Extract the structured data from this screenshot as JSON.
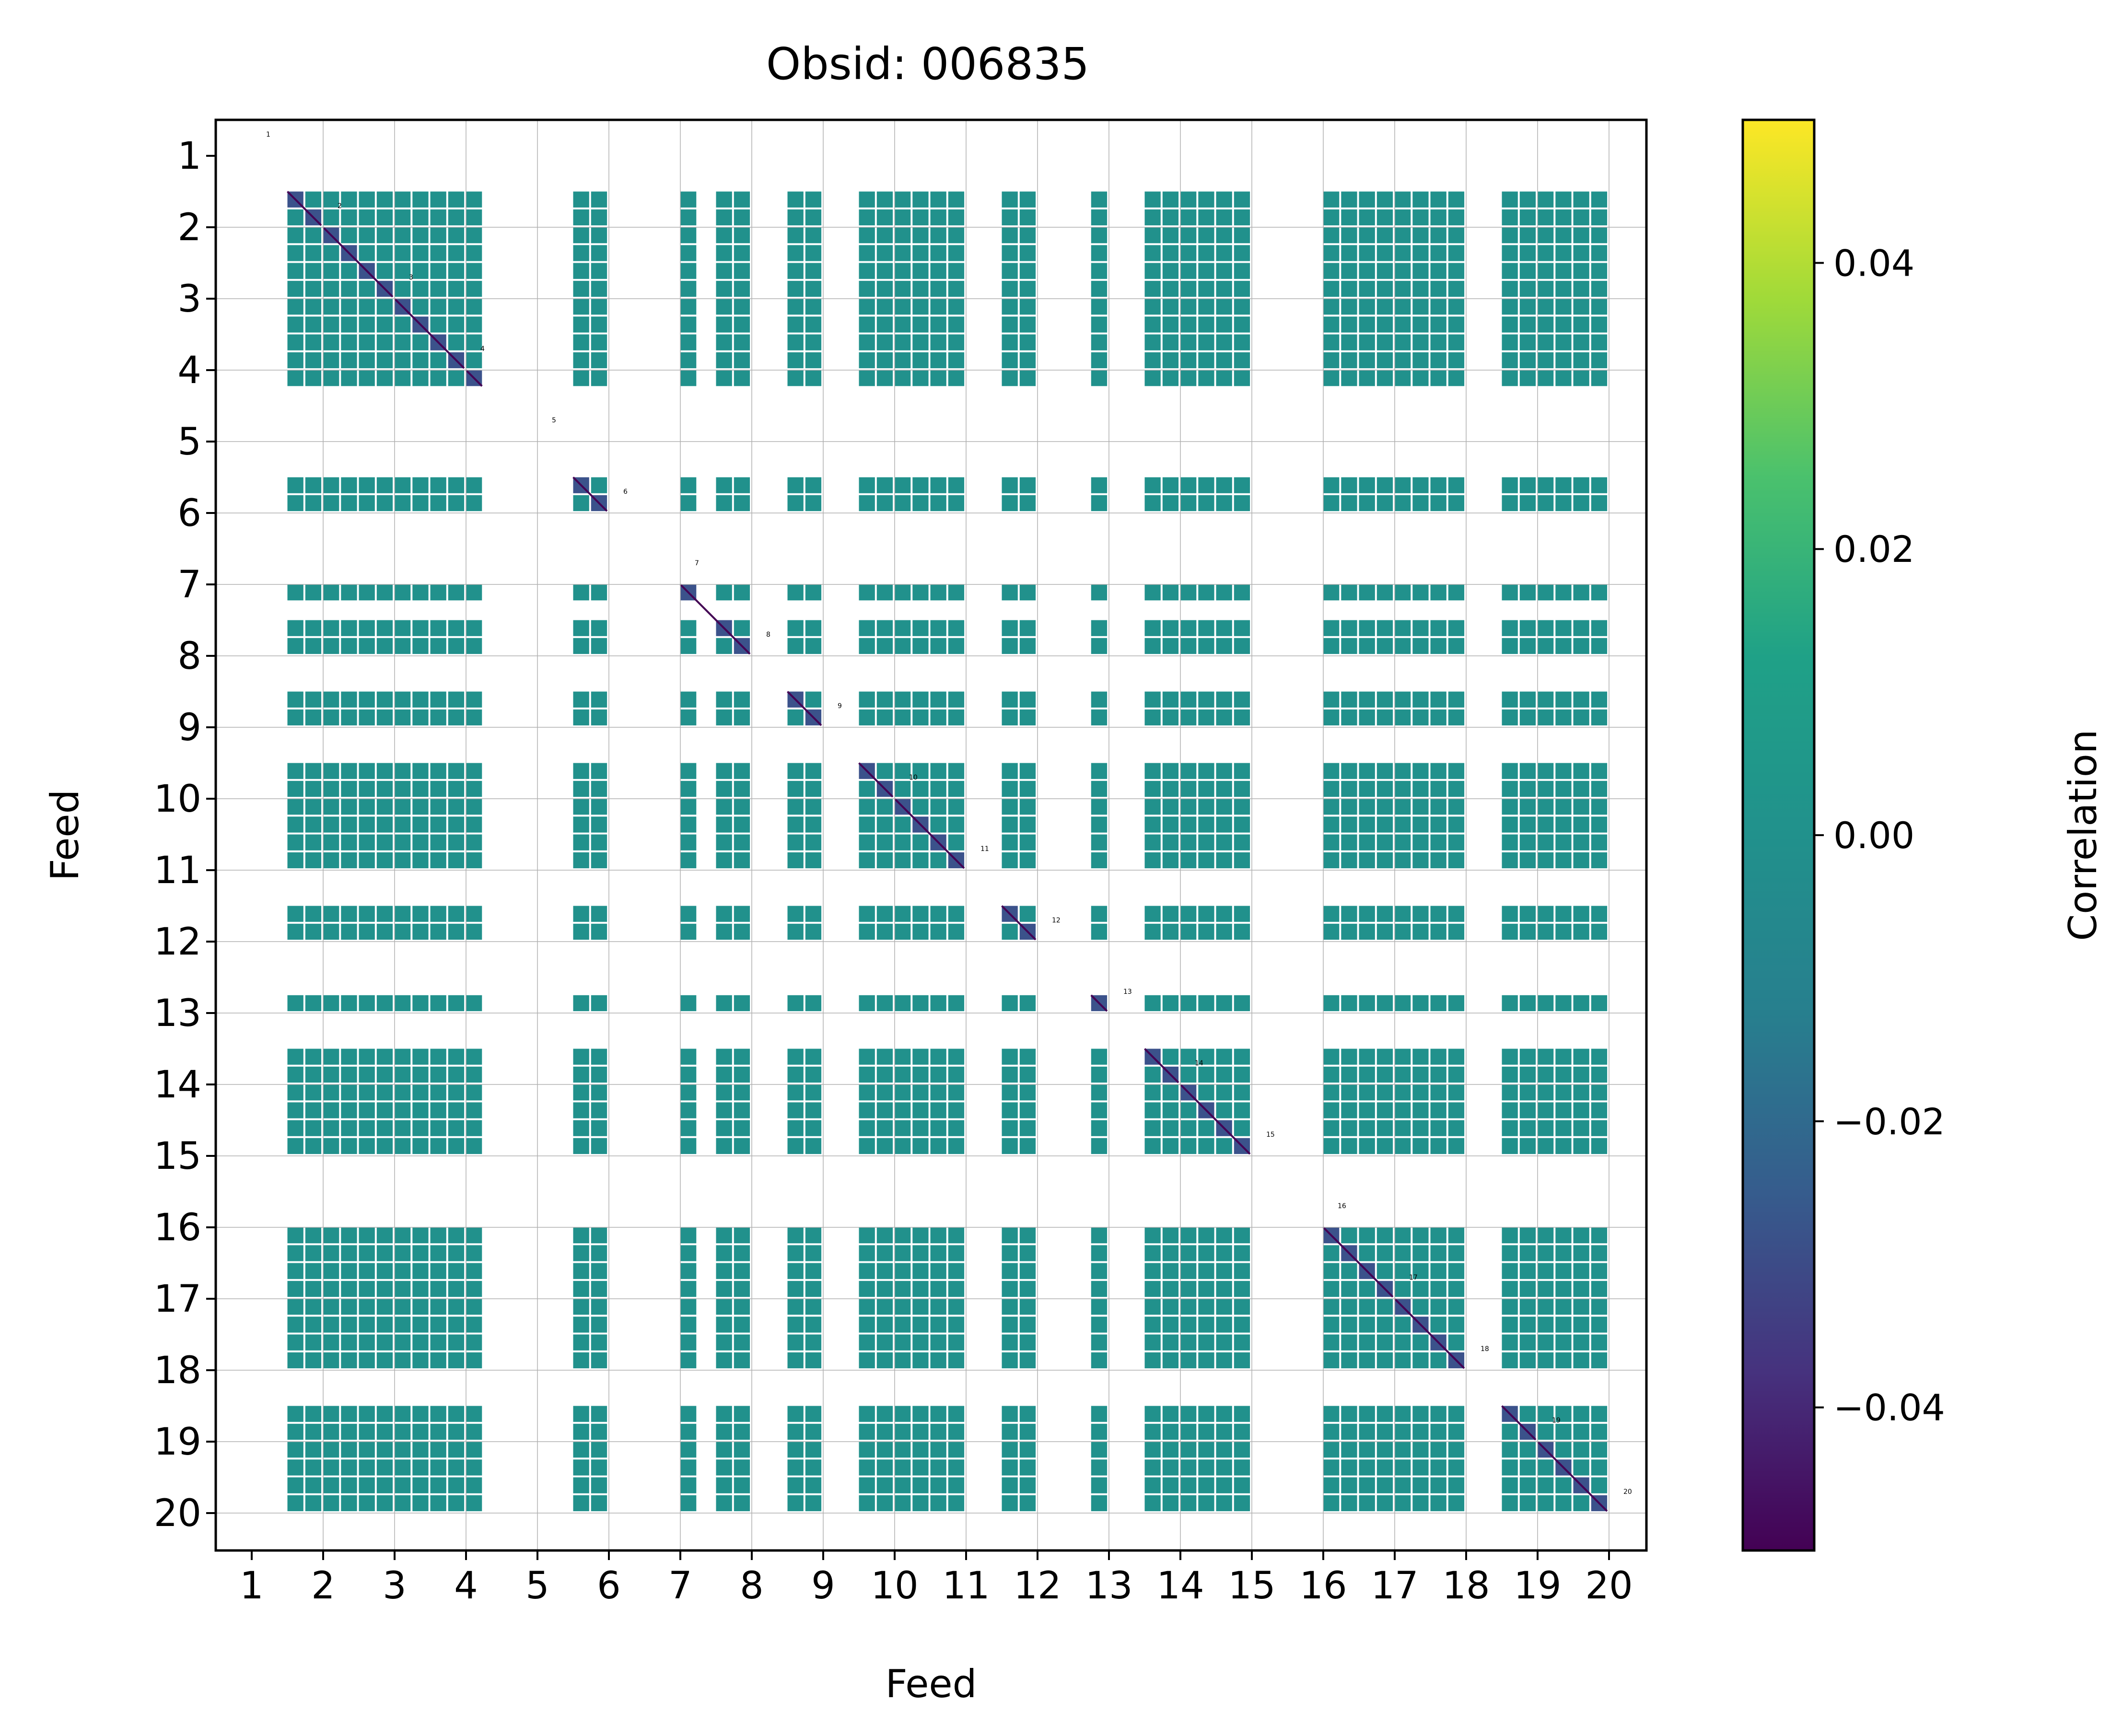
{
  "chart_data": {
    "type": "heatmap",
    "title": "Obsid: 006835",
    "xlabel": "Feed",
    "ylabel": "Feed",
    "x_tick_labels": [
      "1",
      "2",
      "3",
      "4",
      "5",
      "6",
      "7",
      "8",
      "9",
      "10",
      "11",
      "12",
      "13",
      "14",
      "15",
      "16",
      "17",
      "18",
      "19",
      "20"
    ],
    "y_tick_labels": [
      "1",
      "2",
      "3",
      "4",
      "5",
      "6",
      "7",
      "8",
      "9",
      "10",
      "11",
      "12",
      "13",
      "14",
      "15",
      "16",
      "17",
      "18",
      "19",
      "20"
    ],
    "feed_annotations": [
      "1",
      "2",
      "3",
      "4",
      "5",
      "6",
      "7",
      "8",
      "9",
      "10",
      "11",
      "12",
      "13",
      "14",
      "15",
      "16",
      "17",
      "18",
      "19",
      "20"
    ],
    "colorbar": {
      "label": "Correlation",
      "colormap": "viridis",
      "vmin": -0.05,
      "vmax": 0.05,
      "ticks": [
        -0.04,
        -0.02,
        0.0,
        0.02,
        0.04
      ],
      "tick_labels": [
        "−0.04",
        "−0.02",
        "0.00",
        "0.02",
        "0.04"
      ]
    },
    "subcells_per_feed": 4,
    "cell_value": 0.0,
    "diagonal_value": -0.05,
    "feeds": [
      {
        "feed": 1,
        "active_rows": [
          2,
          3
        ]
      },
      {
        "feed": 2,
        "active_rows": [
          0,
          1,
          2,
          3
        ]
      },
      {
        "feed": 3,
        "active_rows": [
          0,
          1,
          2,
          3
        ]
      },
      {
        "feed": 4,
        "active_rows": [
          0
        ]
      },
      {
        "feed": 5,
        "active_rows": [
          2,
          3
        ]
      },
      {
        "feed": 6,
        "active_rows": []
      },
      {
        "feed": 7,
        "active_rows": [
          0,
          2,
          3
        ]
      },
      {
        "feed": 8,
        "active_rows": [
          2,
          3
        ]
      },
      {
        "feed": 9,
        "active_rows": [
          2,
          3
        ]
      },
      {
        "feed": 10,
        "active_rows": [
          0,
          1,
          2,
          3
        ]
      },
      {
        "feed": 11,
        "active_rows": [
          2,
          3
        ]
      },
      {
        "feed": 12,
        "active_rows": [
          3
        ]
      },
      {
        "feed": 13,
        "active_rows": [
          2,
          3
        ]
      },
      {
        "feed": 14,
        "active_rows": [
          0,
          1,
          2,
          3
        ]
      },
      {
        "feed": 15,
        "active_rows": []
      },
      {
        "feed": 16,
        "active_rows": [
          0,
          1,
          2,
          3
        ]
      },
      {
        "feed": 17,
        "active_rows": [
          0,
          1,
          2,
          3
        ]
      },
      {
        "feed": 18,
        "active_rows": [
          2,
          3
        ]
      },
      {
        "feed": 19,
        "active_rows": [
          0,
          1,
          2,
          3
        ]
      },
      {
        "feed": 20,
        "active_rows": []
      }
    ],
    "pair_pattern": "cells present where both feeds have active rows and columns; diagonal blocks show negative (purple) correlations along the main diagonal",
    "grid": true,
    "colors": {
      "cell": "#21918c",
      "diagonal": "#440154",
      "diagonal_line": "#3b528b",
      "gridline": "#b0b0b0",
      "axes": "#000000",
      "background": "#ffffff"
    }
  }
}
